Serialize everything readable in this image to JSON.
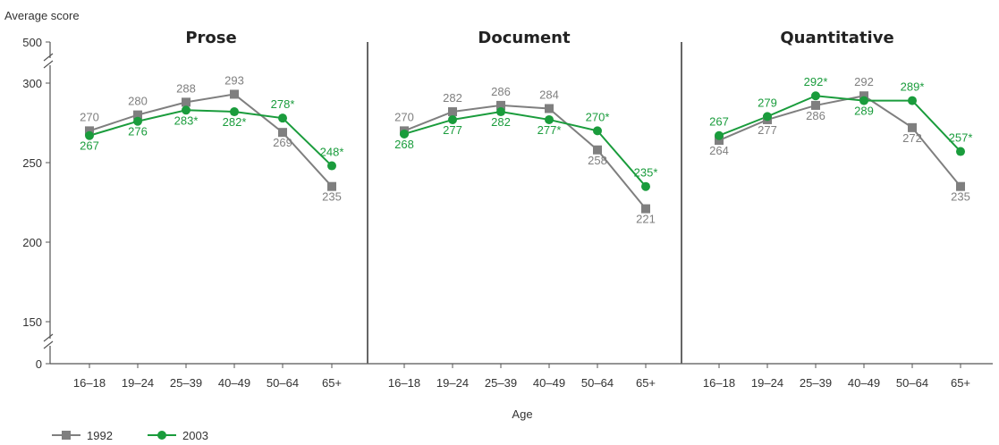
{
  "chart_data": {
    "type": "line",
    "y_axis_title": "Average score",
    "x_axis_title": "Age",
    "y_ticks": [
      "500",
      "300",
      "250",
      "200",
      "150",
      "0"
    ],
    "y_range": [
      150,
      300
    ],
    "y_break": true,
    "categories": [
      "16–18",
      "19–24",
      "25–39",
      "40–49",
      "50–64",
      "65+"
    ],
    "colors": {
      "1992": "#7f7f7f",
      "2003": "#1a9c3c"
    },
    "markers": {
      "1992": "square",
      "2003": "circle"
    },
    "legend": {
      "position": "bottom-left",
      "entries": [
        "1992",
        "2003"
      ]
    },
    "panels": [
      {
        "title": "Prose",
        "series": [
          {
            "name": "1992",
            "values": [
              270,
              280,
              288,
              293,
              269,
              235
            ],
            "labels": [
              "270",
              "280",
              "288",
              "293",
              "269",
              "235"
            ]
          },
          {
            "name": "2003",
            "values": [
              267,
              276,
              283,
              282,
              278,
              248
            ],
            "labels": [
              "267",
              "276",
              "283*",
              "282*",
              "278*",
              "248*"
            ]
          }
        ]
      },
      {
        "title": "Document",
        "series": [
          {
            "name": "1992",
            "values": [
              270,
              282,
              286,
              284,
              258,
              221
            ],
            "labels": [
              "270",
              "282",
              "286",
              "284",
              "258",
              "221"
            ]
          },
          {
            "name": "2003",
            "values": [
              268,
              277,
              282,
              277,
              270,
              235
            ],
            "labels": [
              "268",
              "277",
              "282",
              "277*",
              "270*",
              "235*"
            ]
          }
        ]
      },
      {
        "title": "Quantitative",
        "series": [
          {
            "name": "1992",
            "values": [
              264,
              277,
              286,
              292,
              272,
              235
            ],
            "labels": [
              "264",
              "277",
              "286",
              "292",
              "272",
              "235"
            ]
          },
          {
            "name": "2003",
            "values": [
              267,
              279,
              292,
              289,
              289,
              257
            ],
            "labels": [
              "267",
              "279",
              "292*",
              "289",
              "289*",
              "257*"
            ]
          }
        ]
      }
    ]
  }
}
